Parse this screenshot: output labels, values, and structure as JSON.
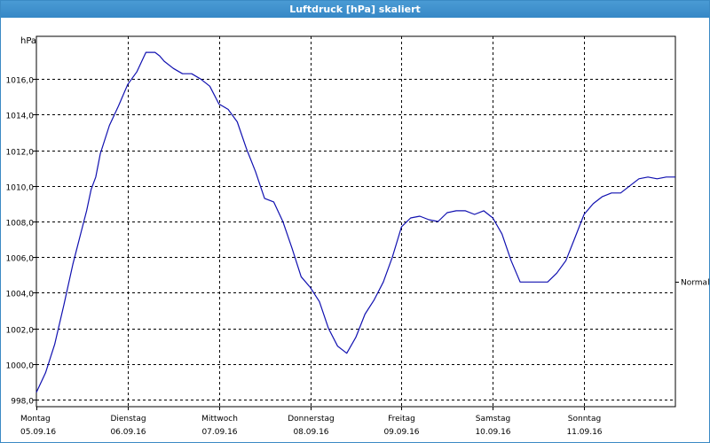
{
  "window": {
    "title": "Luftdruck [hPa] skaliert"
  },
  "chart_data": {
    "type": "line",
    "title": "Luftdruck [hPa] skaliert",
    "ylabel": "hPa",
    "ylim": [
      997.6,
      1018.4
    ],
    "yticks": [
      "998,0",
      "1000,0",
      "1002,0",
      "1004,0",
      "1006,0",
      "1008,0",
      "1010,0",
      "1012,0",
      "1014,0",
      "1016,0"
    ],
    "ytick_values": [
      998,
      1000,
      1002,
      1004,
      1006,
      1008,
      1010,
      1012,
      1014,
      1016
    ],
    "xlim": [
      0,
      7
    ],
    "xticks": [
      {
        "day": "Montag",
        "date": "05.09.16"
      },
      {
        "day": "Dienstag",
        "date": "06.09.16"
      },
      {
        "day": "Mittwoch",
        "date": "07.09.16"
      },
      {
        "day": "Donnerstag",
        "date": "08.09.16"
      },
      {
        "day": "Freitag",
        "date": "09.09.16"
      },
      {
        "day": "Samstag",
        "date": "10.09.16"
      },
      {
        "day": "Sonntag",
        "date": "11.09.16"
      }
    ],
    "reference_label": "Normal",
    "reference_value": 1004.6,
    "grid": true,
    "line_color": "#1010b0",
    "series": [
      {
        "x": [
          0.0,
          0.1,
          0.2,
          0.3,
          0.4,
          0.5,
          0.55,
          0.6,
          0.65,
          0.7,
          0.8,
          0.9,
          1.0,
          1.1,
          1.2,
          1.3,
          1.35,
          1.4,
          1.5,
          1.6,
          1.7,
          1.8,
          1.9,
          2.0,
          2.1,
          2.2,
          2.3,
          2.4,
          2.5,
          2.6,
          2.7,
          2.8,
          2.9,
          3.0,
          3.1,
          3.2,
          3.3,
          3.4,
          3.5,
          3.6,
          3.7,
          3.8,
          3.9,
          4.0,
          4.1,
          4.2,
          4.3,
          4.4,
          4.5,
          4.6,
          4.7,
          4.8,
          4.9,
          5.0,
          5.1,
          5.2,
          5.3,
          5.4,
          5.5,
          5.6,
          5.7,
          5.8,
          5.9,
          6.0,
          6.1,
          6.2,
          6.3,
          6.4,
          6.5,
          6.6,
          6.7,
          6.8,
          6.9,
          7.0
        ],
        "y": [
          998.4,
          999.5,
          1001.1,
          1003.3,
          1005.6,
          1007.6,
          1008.6,
          1009.8,
          1010.5,
          1011.8,
          1013.4,
          1014.5,
          1015.7,
          1016.4,
          1017.5,
          1017.5,
          1017.3,
          1017.0,
          1016.6,
          1016.3,
          1016.3,
          1016.0,
          1015.6,
          1014.6,
          1014.3,
          1013.6,
          1012.1,
          1010.8,
          1009.3,
          1009.1,
          1008.0,
          1006.5,
          1004.9,
          1004.3,
          1003.5,
          1002.0,
          1001.0,
          1000.6,
          1001.5,
          1002.8,
          1003.6,
          1004.6,
          1006.0,
          1007.7,
          1008.2,
          1008.3,
          1008.1,
          1008.0,
          1008.5,
          1008.6,
          1008.6,
          1008.4,
          1008.6,
          1008.2,
          1007.3,
          1005.8,
          1004.6,
          1004.6,
          1004.6,
          1004.6,
          1005.1,
          1005.8,
          1007.1,
          1008.4,
          1009.0,
          1009.4,
          1009.6,
          1009.6,
          1010.0,
          1010.4,
          1010.5,
          1010.4,
          1010.5,
          1010.5
        ]
      }
    ]
  }
}
